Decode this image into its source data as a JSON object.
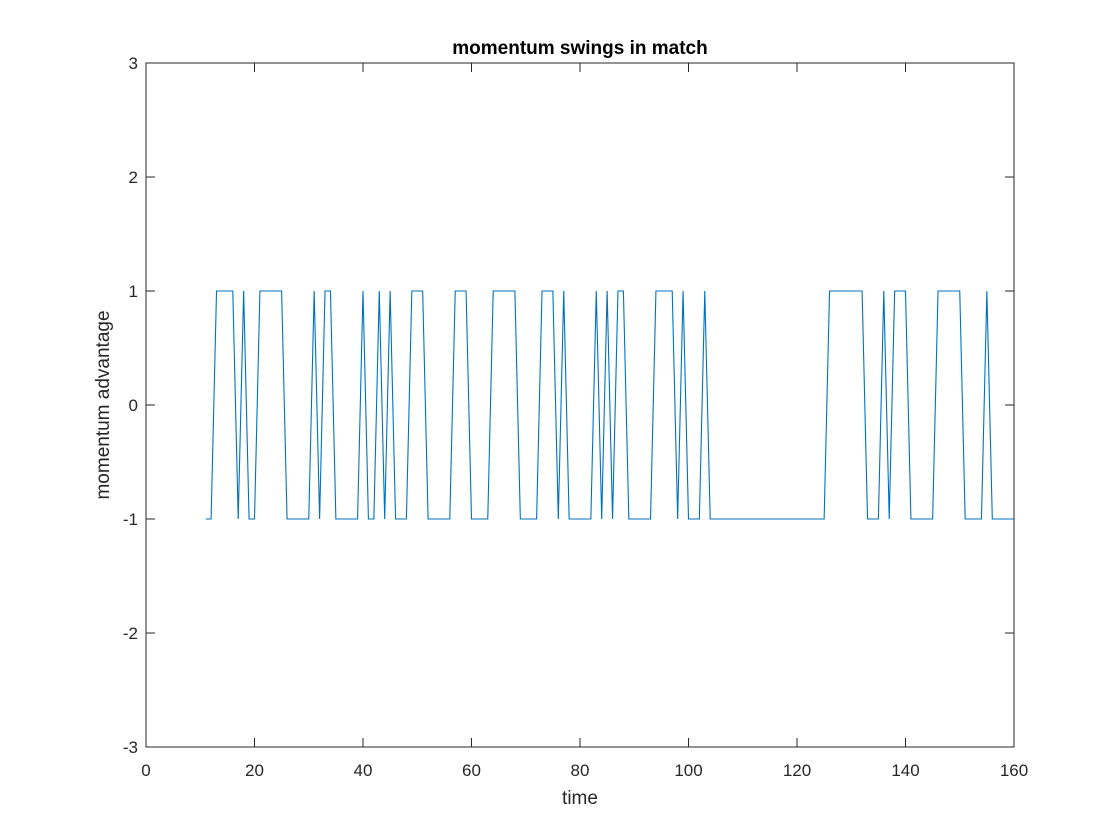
{
  "chart_data": {
    "type": "line",
    "title": "momentum swings in match",
    "xlabel": "time",
    "ylabel": "momentum advantage",
    "xlim": [
      0,
      160
    ],
    "ylim": [
      -3,
      3
    ],
    "xticks": [
      0,
      20,
      40,
      60,
      80,
      100,
      120,
      140,
      160
    ],
    "yticks": [
      -3,
      -2,
      -1,
      0,
      1,
      2,
      3
    ],
    "grid": false,
    "line_color": "#0072BD",
    "series": [
      {
        "x": [
          11,
          12,
          13,
          14,
          15,
          16,
          17,
          18,
          19,
          20,
          21,
          22,
          23,
          24,
          25,
          26,
          27,
          28,
          29,
          30,
          31,
          32,
          33,
          34,
          35,
          36,
          37,
          38,
          39,
          40,
          41,
          42,
          43,
          44,
          45,
          46,
          47,
          48,
          49,
          50,
          51,
          52,
          53,
          54,
          55,
          56,
          57,
          58,
          59,
          60,
          61,
          62,
          63,
          64,
          65,
          66,
          67,
          68,
          69,
          70,
          71,
          72,
          73,
          74,
          75,
          76,
          77,
          78,
          79,
          80,
          81,
          82,
          83,
          84,
          85,
          86,
          87,
          88,
          89,
          90,
          91,
          92,
          93,
          94,
          95,
          96,
          97,
          98,
          99,
          100,
          101,
          102,
          103,
          104,
          105,
          106,
          107,
          108,
          109,
          110,
          111,
          112,
          113,
          114,
          115,
          116,
          117,
          118,
          119,
          120,
          121,
          122,
          123,
          124,
          125,
          126,
          127,
          128,
          129,
          130,
          131,
          132,
          133,
          134,
          135,
          136,
          137,
          138,
          139,
          140,
          141,
          142,
          143,
          144,
          145,
          146,
          147,
          148,
          149,
          150,
          151,
          152,
          153,
          154,
          155,
          156,
          157,
          158,
          159,
          160
        ],
        "y": [
          -1,
          -1,
          1,
          1,
          1,
          1,
          -1,
          1,
          -1,
          -1,
          1,
          1,
          1,
          1,
          1,
          -1,
          -1,
          -1,
          -1,
          -1,
          1,
          -1,
          1,
          1,
          -1,
          -1,
          -1,
          -1,
          -1,
          1,
          -1,
          -1,
          1,
          -1,
          1,
          -1,
          -1,
          -1,
          1,
          1,
          1,
          -1,
          -1,
          -1,
          -1,
          -1,
          1,
          1,
          1,
          -1,
          -1,
          -1,
          -1,
          1,
          1,
          1,
          1,
          1,
          -1,
          -1,
          -1,
          -1,
          1,
          1,
          1,
          -1,
          1,
          -1,
          -1,
          -1,
          -1,
          -1,
          1,
          -1,
          1,
          -1,
          1,
          1,
          -1,
          -1,
          -1,
          -1,
          -1,
          1,
          1,
          1,
          1,
          -1,
          1,
          -1,
          -1,
          -1,
          1,
          -1,
          -1,
          -1,
          -1,
          -1,
          -1,
          -1,
          -1,
          -1,
          -1,
          -1,
          -1,
          -1,
          -1,
          -1,
          -1,
          -1,
          -1,
          -1,
          -1,
          -1,
          -1,
          1,
          1,
          1,
          1,
          1,
          1,
          1,
          -1,
          -1,
          -1,
          1,
          -1,
          1,
          1,
          1,
          -1,
          -1,
          -1,
          -1,
          -1,
          1,
          1,
          1,
          1,
          1,
          -1,
          -1,
          -1,
          -1,
          1,
          -1,
          -1,
          -1,
          -1,
          -1
        ]
      }
    ]
  }
}
